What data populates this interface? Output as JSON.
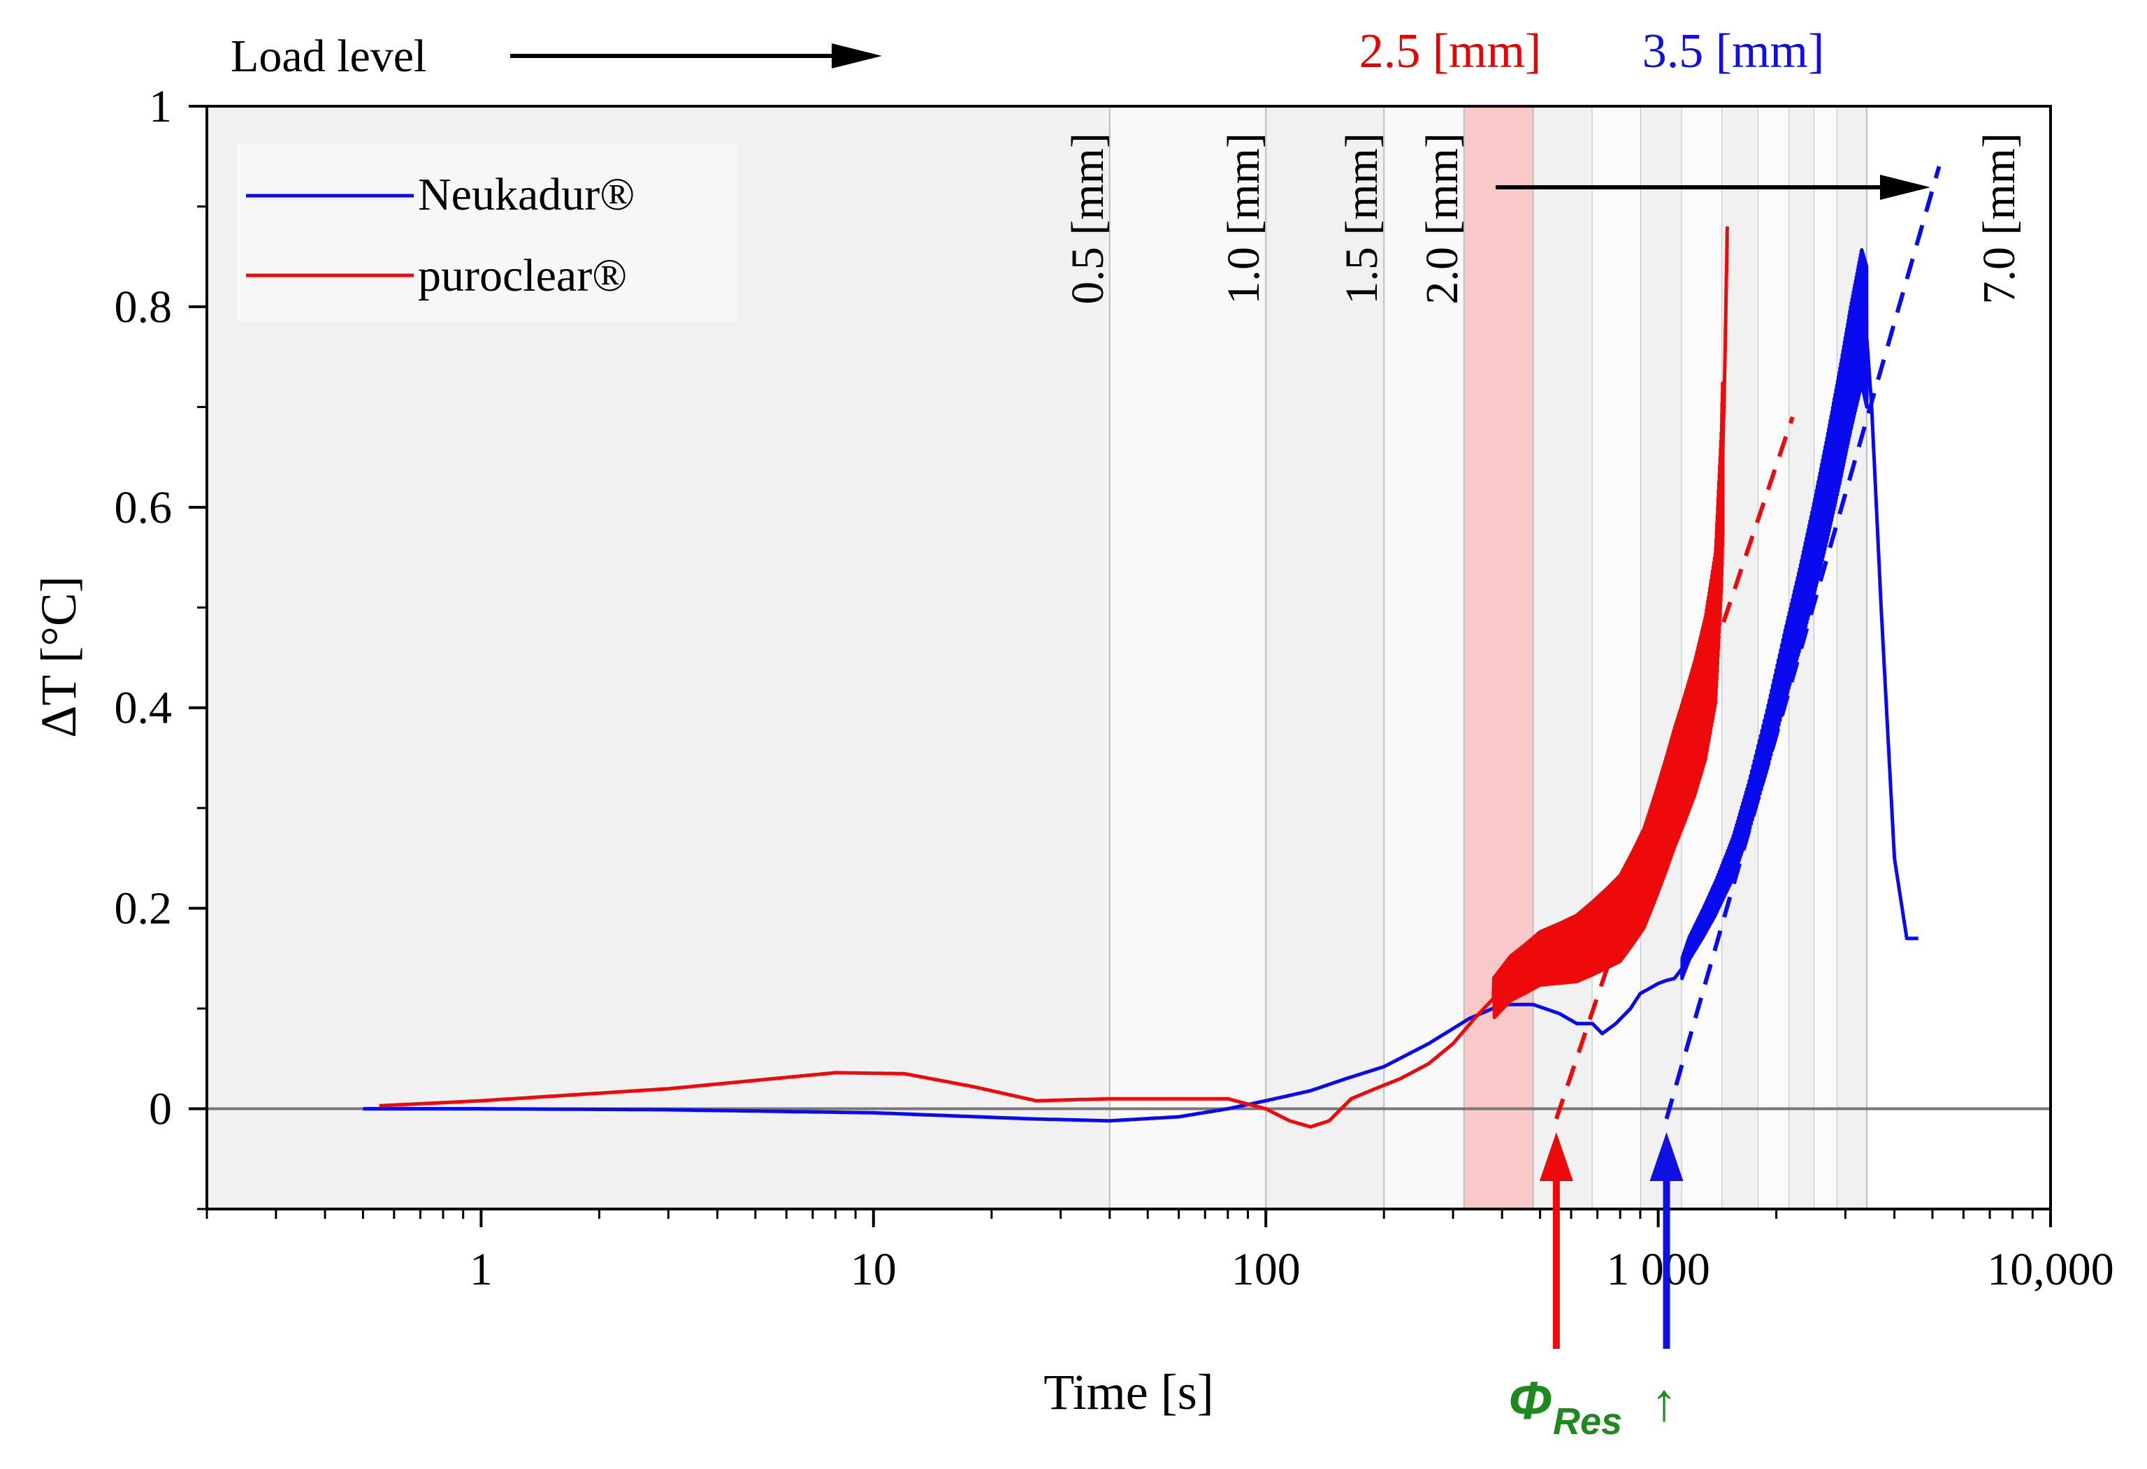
{
  "chart_data": {
    "type": "line",
    "title": "",
    "xlabel": "Time [s]",
    "ylabel": "ΔT [°C]",
    "xscale": "log",
    "xlim": [
      0.2,
      10000
    ],
    "ylim": [
      -0.1,
      1.0
    ],
    "x_ticks": [
      {
        "value": 1,
        "label": "1"
      },
      {
        "value": 10,
        "label": "10"
      },
      {
        "value": 100,
        "label": "100"
      },
      {
        "value": 1000,
        "label": "1 000"
      },
      {
        "value": 10000,
        "label": "10,000"
      }
    ],
    "y_ticks": [
      {
        "value": 0,
        "label": "0"
      },
      {
        "value": 0.2,
        "label": "0.2"
      },
      {
        "value": 0.4,
        "label": "0.4"
      },
      {
        "value": 0.6,
        "label": "0.6"
      },
      {
        "value": 0.8,
        "label": "0.8"
      },
      {
        "value": 1.0,
        "label": "1"
      }
    ],
    "legend_position": "top-left",
    "series": [
      {
        "name": "Neukadur®",
        "color": "#0a0aee",
        "x": [
          0.5,
          1,
          3,
          10,
          25,
          40,
          60,
          80,
          100,
          130,
          160,
          200,
          260,
          330,
          400,
          480,
          560,
          620,
          680,
          720,
          780,
          850,
          900,
          950,
          1000,
          1050,
          1100,
          1150,
          1200,
          1300,
          1400,
          1550,
          1700,
          1900,
          2100,
          2300,
          2500,
          2700,
          2900,
          3100,
          3300,
          3400,
          3500,
          3700,
          4000,
          4300,
          4600
        ],
        "y": [
          0.0,
          0.0,
          -0.001,
          -0.004,
          -0.01,
          -0.012,
          -0.008,
          0.0,
          0.008,
          0.018,
          0.03,
          0.042,
          0.065,
          0.09,
          0.104,
          0.104,
          0.095,
          0.085,
          0.085,
          0.075,
          0.085,
          0.1,
          0.115,
          0.12,
          0.125,
          0.128,
          0.13,
          0.14,
          0.16,
          0.185,
          0.21,
          0.25,
          0.3,
          0.37,
          0.44,
          0.5,
          0.56,
          0.62,
          0.68,
          0.74,
          0.79,
          0.77,
          0.7,
          0.5,
          0.25,
          0.17,
          0.17
        ]
      },
      {
        "name": "puroclear®",
        "color": "#ee0a0a",
        "x": [
          0.55,
          1,
          3,
          8,
          12,
          18,
          26,
          40,
          60,
          80,
          100,
          115,
          130,
          145,
          165,
          190,
          220,
          260,
          300,
          340,
          380,
          420,
          460,
          500,
          560,
          620,
          680,
          740,
          800,
          860,
          920,
          980,
          1040,
          1100,
          1170,
          1240,
          1320,
          1400,
          1450,
          1480,
          1500
        ],
        "y": [
          0.003,
          0.008,
          0.02,
          0.036,
          0.035,
          0.022,
          0.008,
          0.01,
          0.01,
          0.01,
          0.0,
          -0.012,
          -0.018,
          -0.012,
          0.01,
          0.02,
          0.03,
          0.045,
          0.065,
          0.09,
          0.11,
          0.13,
          0.14,
          0.15,
          0.155,
          0.16,
          0.17,
          0.18,
          0.19,
          0.21,
          0.23,
          0.26,
          0.29,
          0.32,
          0.35,
          0.38,
          0.42,
          0.48,
          0.6,
          0.75,
          0.88
        ]
      }
    ],
    "zero_line": 0,
    "load_levels": [
      {
        "label": "0.5 [mm]",
        "t_start": 40,
        "t_end": 100,
        "fill": "#f9f9f9"
      },
      {
        "label": "1.0 [mm]",
        "t_start": 100,
        "t_end": 200,
        "fill": "#f1f1f1"
      },
      {
        "label": "1.5 [mm]",
        "t_start": 200,
        "t_end": 320,
        "fill": "#f9f9f9"
      },
      {
        "label": "2.0 [mm]",
        "t_start": 320,
        "t_end": 480,
        "fill": "#f1f1f1"
      },
      {
        "label": "2.5 [mm]",
        "t_start": 320,
        "t_end": 480,
        "fill": "#f9c9c9",
        "color": "#ee0000"
      },
      {
        "label": "3.5 [mm]",
        "t_start": 680,
        "t_end": 900,
        "fill": "#c9c9f5",
        "color": "#1010e0"
      },
      {
        "label": "7.0 [mm]",
        "t_start": 3400,
        "t_end": 10000,
        "fill": "#ffffff"
      }
    ],
    "extra_band_bounds": [
      480,
      680,
      900,
      1150,
      1450,
      1800,
      2150,
      2500,
      2850,
      3400
    ],
    "tangents": [
      {
        "series": "puroclear®",
        "color": "#ee0a0a",
        "x": [
          550,
          2200
        ],
        "y": [
          -0.01,
          0.69
        ]
      },
      {
        "series": "Neukadur®",
        "color": "#0a0aee",
        "x": [
          1050,
          5200
        ],
        "y": [
          -0.01,
          0.94
        ]
      }
    ],
    "annotations": {
      "load_level_text": "Load level",
      "phi_res_symbol": "Φ",
      "phi_res_subscript": "Res",
      "phi_up_arrow": "↑",
      "phi_res_times": [
        550,
        1050
      ]
    }
  }
}
